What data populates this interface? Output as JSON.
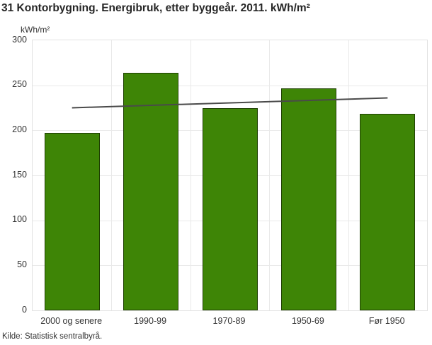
{
  "chart_data": {
    "type": "bar",
    "title": "31 Kontorbygning. Energibruk, etter byggeår. 2011. kWh/m²",
    "unit_label": "kWh/m²",
    "categories": [
      "2000 og senere",
      "1990-99",
      "1970-89",
      "1950-69",
      "Før 1950"
    ],
    "values": [
      197,
      264,
      225,
      247,
      218
    ],
    "trend_line": {
      "start_value": 225,
      "end_value": 236
    },
    "ylim": [
      0,
      300
    ],
    "yticks": [
      0,
      50,
      100,
      150,
      200,
      250,
      300
    ],
    "grid": true,
    "legend": "none",
    "colors": {
      "bar_fill": "#3e8506",
      "bar_border": "#1f4003",
      "trend_line": "#4a4a4a",
      "gridline": "#e9e9e9",
      "plot_border": "#e2e2e2",
      "text": "#333333",
      "title_text": "#262626"
    }
  },
  "source": {
    "label": "Kilde: Statistisk sentralbyrå."
  }
}
